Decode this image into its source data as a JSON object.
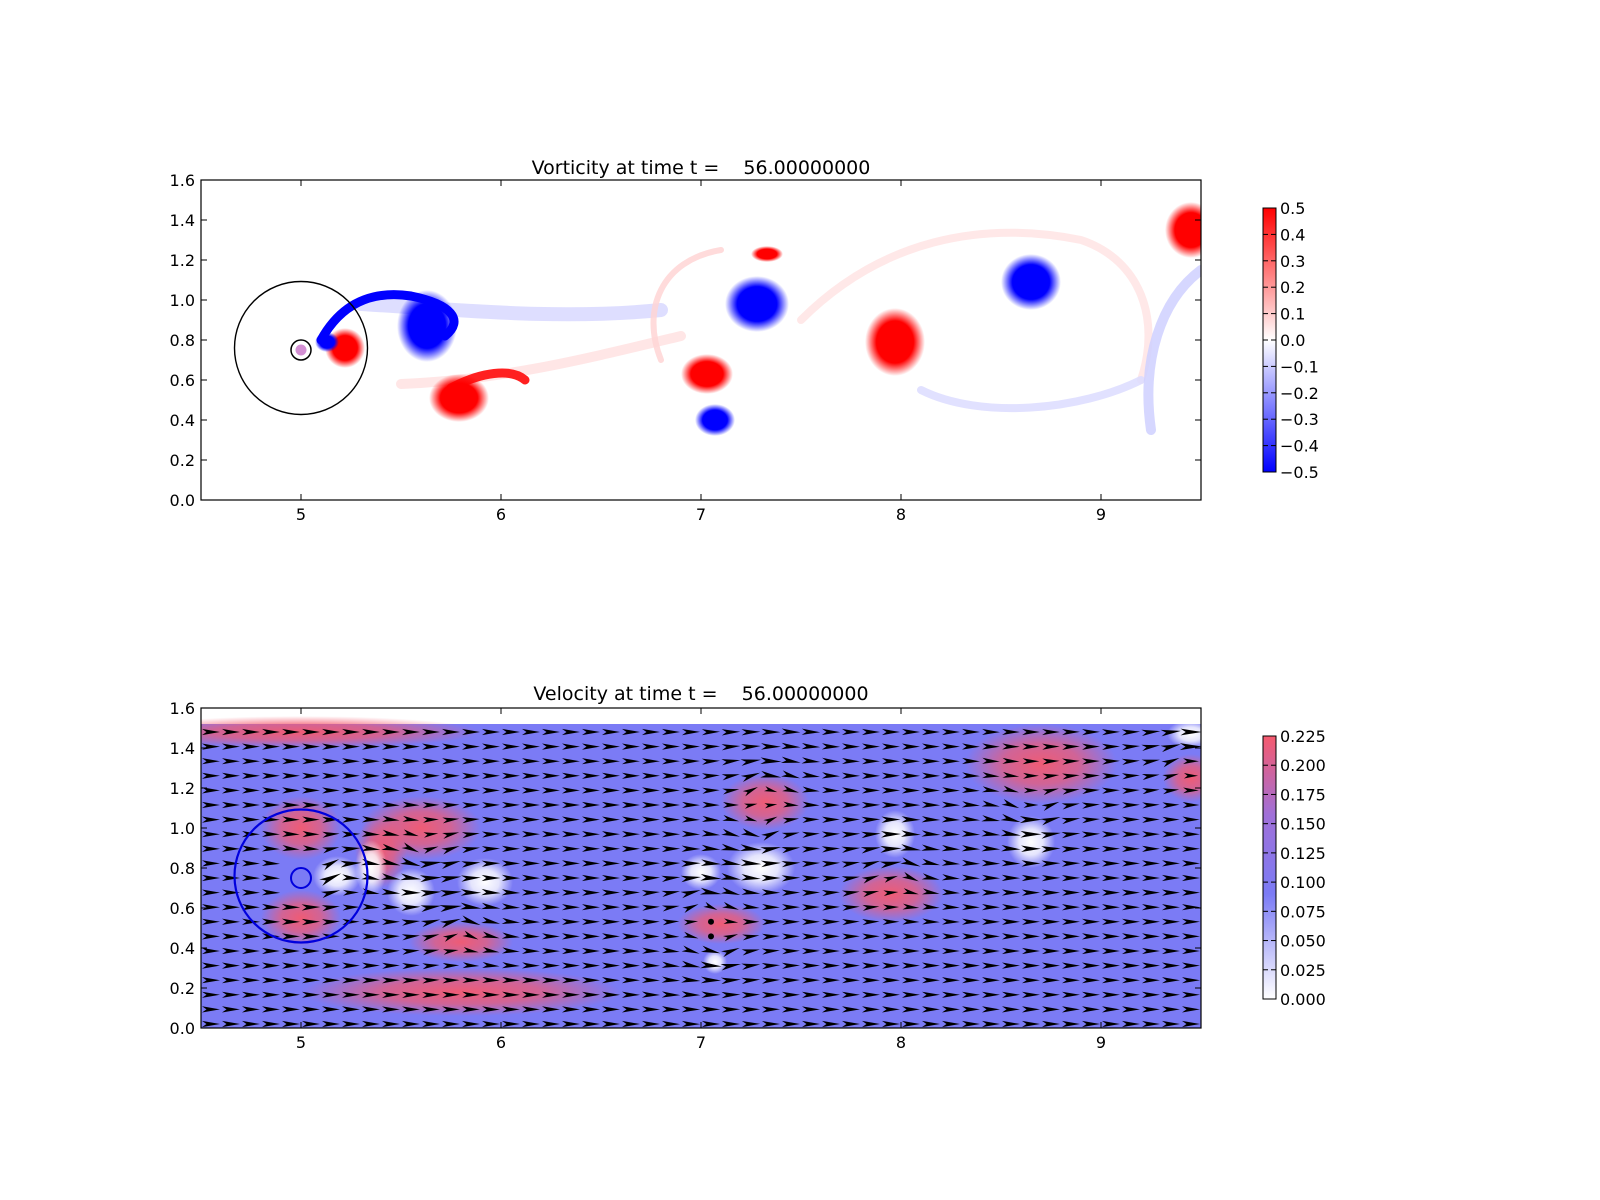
{
  "chart_data": [
    {
      "type": "heatmap",
      "title": "Vorticity at time t =    56.00000000",
      "xlabel": "",
      "ylabel": "",
      "xlim": [
        4.5,
        9.5
      ],
      "ylim": [
        0.0,
        1.6
      ],
      "xticks": [
        "5",
        "6",
        "7",
        "8",
        "9"
      ],
      "yticks": [
        "0.0",
        "0.2",
        "0.4",
        "0.6",
        "0.8",
        "1.0",
        "1.2",
        "1.4",
        "1.6"
      ],
      "colormap": "bwr",
      "colors": {
        "negative": "#0000ff",
        "zero": "#ffffff",
        "positive": "#ff0000"
      },
      "colorbar": {
        "range": [
          -0.5,
          0.5
        ],
        "ticks": [
          "0.5",
          "0.4",
          "0.3",
          "0.2",
          "0.1",
          "0.0",
          "−0.1",
          "−0.2",
          "−0.3",
          "−0.4",
          "−0.5"
        ]
      },
      "obstacle": {
        "cx": 5.0,
        "cy": 0.75,
        "r": 0.05
      },
      "circle": {
        "cx": 5.0,
        "cy": 0.76,
        "r": 0.35,
        "color": "#000000"
      },
      "vortices": [
        {
          "x": 5.22,
          "y": 0.76,
          "rx": 0.1,
          "ry": 0.1,
          "sign": 1
        },
        {
          "x": 5.13,
          "y": 0.79,
          "rx": 0.06,
          "ry": 0.05,
          "sign": -1
        },
        {
          "x": 5.63,
          "y": 0.87,
          "rx": 0.15,
          "ry": 0.18,
          "sign": -1
        },
        {
          "x": 5.79,
          "y": 0.51,
          "rx": 0.15,
          "ry": 0.12,
          "sign": 1
        },
        {
          "x": 7.28,
          "y": 0.98,
          "rx": 0.16,
          "ry": 0.14,
          "sign": -1
        },
        {
          "x": 7.33,
          "y": 1.23,
          "rx": 0.08,
          "ry": 0.04,
          "sign": 1
        },
        {
          "x": 7.03,
          "y": 0.63,
          "rx": 0.13,
          "ry": 0.1,
          "sign": 1
        },
        {
          "x": 7.07,
          "y": 0.4,
          "rx": 0.1,
          "ry": 0.08,
          "sign": -1
        },
        {
          "x": 7.97,
          "y": 0.79,
          "rx": 0.15,
          "ry": 0.17,
          "sign": 1
        },
        {
          "x": 8.65,
          "y": 1.09,
          "rx": 0.15,
          "ry": 0.14,
          "sign": -1
        },
        {
          "x": 9.45,
          "y": 1.35,
          "rx": 0.13,
          "ry": 0.14,
          "sign": 1
        }
      ]
    },
    {
      "type": "heatmap",
      "title": "Velocity at time t =    56.00000000",
      "xlabel": "",
      "ylabel": "",
      "xlim": [
        4.5,
        9.5
      ],
      "ylim": [
        0.0,
        1.6
      ],
      "xticks": [
        "5",
        "6",
        "7",
        "8",
        "9"
      ],
      "yticks": [
        "0.0",
        "0.2",
        "0.4",
        "0.6",
        "0.8",
        "1.0",
        "1.2",
        "1.4",
        "1.6"
      ],
      "field_top": 1.52,
      "colors": {
        "low": "#ffffff",
        "mid": "#7b7bf5",
        "high": "#f55a6e",
        "arrow": "#000000"
      },
      "colorbar": {
        "range": [
          0.0,
          0.225
        ],
        "ticks": [
          "0.225",
          "0.200",
          "0.175",
          "0.150",
          "0.125",
          "0.100",
          "0.075",
          "0.050",
          "0.025",
          "0.000"
        ]
      },
      "obstacle": {
        "cx": 5.0,
        "cy": 0.75,
        "r": 0.05
      },
      "circle": {
        "cx": 5.0,
        "cy": 0.76,
        "r": 0.35,
        "color": "#0000dd"
      },
      "fast_regions": [
        {
          "x": 5.0,
          "y": 1.0,
          "rx": 0.2,
          "ry": 0.16
        },
        {
          "x": 5.0,
          "y": 0.55,
          "rx": 0.2,
          "ry": 0.14
        },
        {
          "x": 5.6,
          "y": 1.0,
          "rx": 0.3,
          "ry": 0.16
        },
        {
          "x": 5.4,
          "y": 0.88,
          "rx": 0.13,
          "ry": 0.18
        },
        {
          "x": 5.8,
          "y": 0.43,
          "rx": 0.26,
          "ry": 0.1
        },
        {
          "x": 7.32,
          "y": 1.13,
          "rx": 0.22,
          "ry": 0.14
        },
        {
          "x": 7.1,
          "y": 0.52,
          "rx": 0.22,
          "ry": 0.1
        },
        {
          "x": 7.95,
          "y": 0.67,
          "rx": 0.26,
          "ry": 0.14
        },
        {
          "x": 8.7,
          "y": 1.32,
          "rx": 0.38,
          "ry": 0.2
        },
        {
          "x": 9.45,
          "y": 1.25,
          "rx": 0.14,
          "ry": 0.12
        },
        {
          "x": 5.0,
          "y": 1.48,
          "rx": 0.9,
          "ry": 0.08
        },
        {
          "x": 5.8,
          "y": 0.18,
          "rx": 0.8,
          "ry": 0.12
        }
      ],
      "slow_regions": [
        {
          "x": 5.18,
          "y": 0.76,
          "rx": 0.12,
          "ry": 0.1
        },
        {
          "x": 5.35,
          "y": 0.8,
          "rx": 0.08,
          "ry": 0.14
        },
        {
          "x": 5.55,
          "y": 0.68,
          "rx": 0.12,
          "ry": 0.12
        },
        {
          "x": 5.92,
          "y": 0.73,
          "rx": 0.14,
          "ry": 0.12
        },
        {
          "x": 7.3,
          "y": 0.8,
          "rx": 0.17,
          "ry": 0.13
        },
        {
          "x": 7.0,
          "y": 0.78,
          "rx": 0.1,
          "ry": 0.09
        },
        {
          "x": 7.07,
          "y": 0.33,
          "rx": 0.06,
          "ry": 0.06
        },
        {
          "x": 7.97,
          "y": 0.97,
          "rx": 0.1,
          "ry": 0.12
        },
        {
          "x": 8.65,
          "y": 0.93,
          "rx": 0.12,
          "ry": 0.13
        },
        {
          "x": 9.45,
          "y": 1.47,
          "rx": 0.12,
          "ry": 0.07
        }
      ]
    }
  ]
}
